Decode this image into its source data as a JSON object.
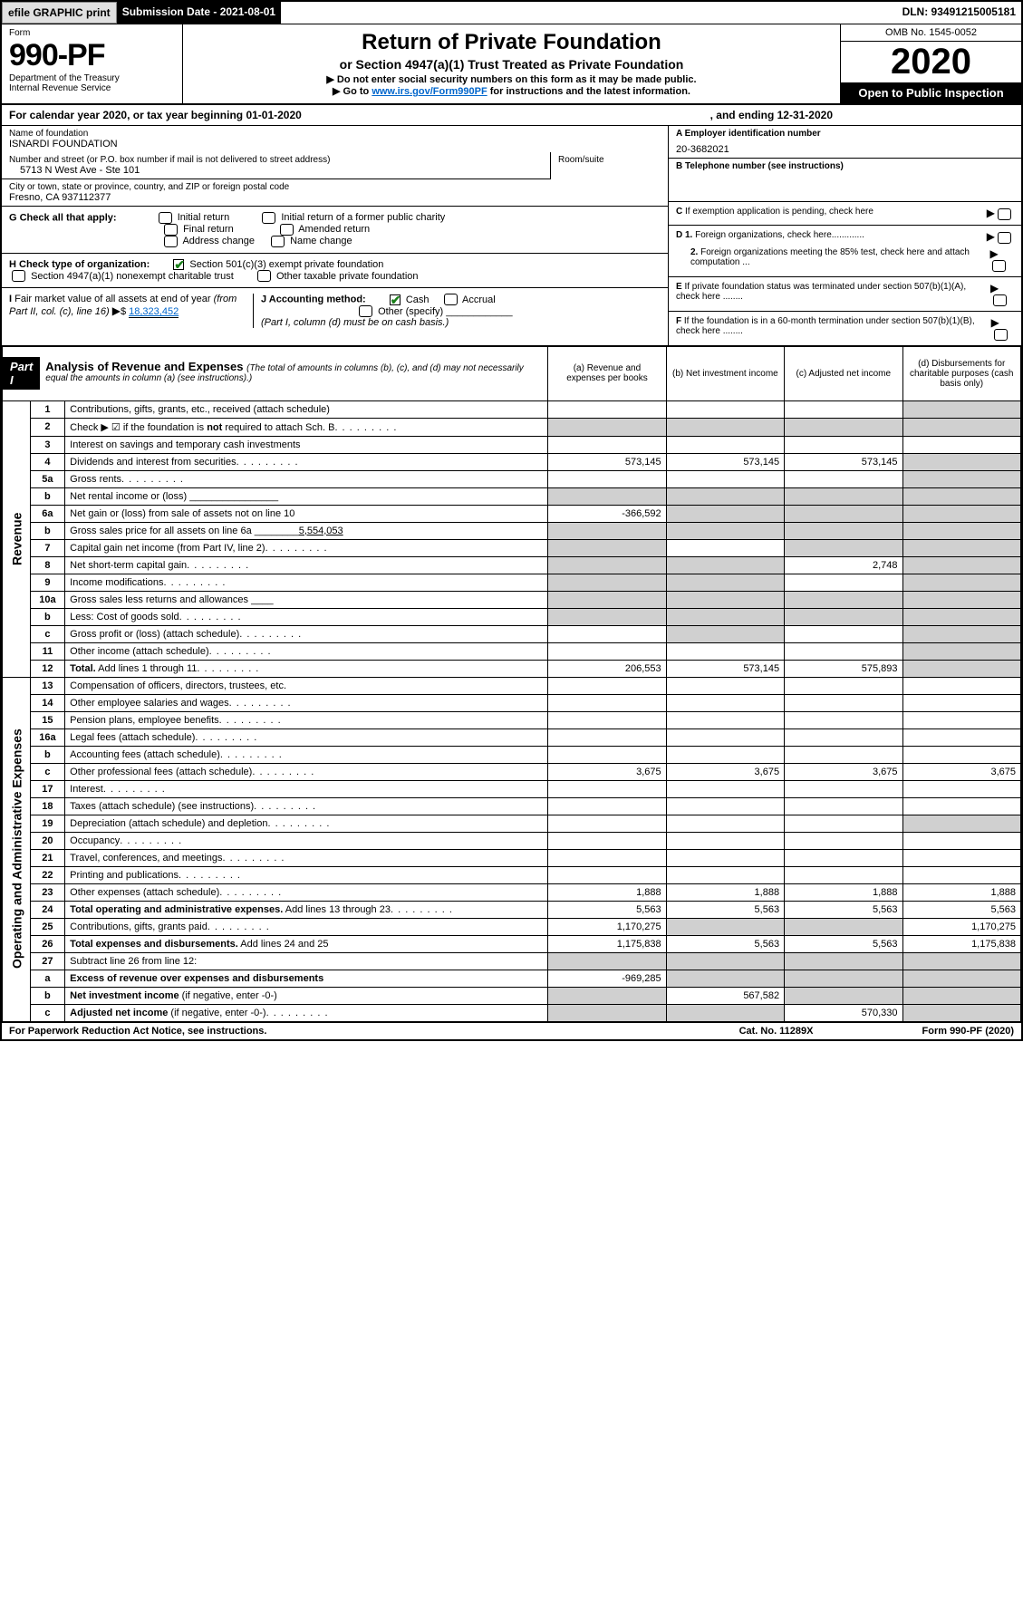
{
  "topbar": {
    "efile": "efile GRAPHIC print",
    "submission": "Submission Date - 2021-08-01",
    "dln": "DLN: 93491215005181"
  },
  "header": {
    "form_label": "Form",
    "form_number": "990-PF",
    "dept": "Department of the Treasury\nInternal Revenue Service",
    "title": "Return of Private Foundation",
    "subtitle": "or Section 4947(a)(1) Trust Treated as Private Foundation",
    "instr1_prefix": "▶ Do not enter social security numbers on this form as it may be made public.",
    "instr2_prefix": "▶ Go to ",
    "instr2_link": "www.irs.gov/Form990PF",
    "instr2_suffix": " for instructions and the latest information.",
    "omb": "OMB No. 1545-0052",
    "year": "2020",
    "open_public": "Open to Public Inspection"
  },
  "calendar": {
    "text_a": "For calendar year 2020, or tax year beginning 01-01-2020",
    "text_b": ", and ending 12-31-2020"
  },
  "info": {
    "name_label": "Name of foundation",
    "name": "ISNARDI FOUNDATION",
    "addr_label": "Number and street (or P.O. box number if mail is not delivered to street address)",
    "addr": "5713 N West Ave - Ste 101",
    "room_label": "Room/suite",
    "city_label": "City or town, state or province, country, and ZIP or foreign postal code",
    "city": "Fresno, CA  937112377",
    "ein_label": "A Employer identification number",
    "ein": "20-3682021",
    "tel_label": "B Telephone number (see instructions)",
    "c_label": "C If exemption application is pending, check here",
    "d1_label": "D 1. Foreign organizations, check here.............",
    "d2_label": "2. Foreign organizations meeting the 85% test, check here and attach computation ...",
    "e_label": "E  If private foundation status was terminated under section 507(b)(1)(A), check here ........",
    "f_label": "F  If the foundation is in a 60-month termination under section 507(b)(1)(B), check here ........"
  },
  "g": {
    "label": "G Check all that apply:",
    "opts": [
      "Initial return",
      "Initial return of a former public charity",
      "Final return",
      "Amended return",
      "Address change",
      "Name change"
    ]
  },
  "h": {
    "label": "H Check type of organization:",
    "opt1": "Section 501(c)(3) exempt private foundation",
    "opt2": "Section 4947(a)(1) nonexempt charitable trust",
    "opt3": "Other taxable private foundation"
  },
  "i": {
    "label": "I Fair market value of all assets at end of year (from Part II, col. (c), line 16) ▶$ ",
    "value": "18,323,452"
  },
  "j": {
    "label": "J Accounting method:",
    "cash": "Cash",
    "accrual": "Accrual",
    "other": "Other (specify)",
    "note": "(Part I, column (d) must be on cash basis.)"
  },
  "part1": {
    "label": "Part I",
    "title": "Analysis of Revenue and Expenses ",
    "sub": "(The total of amounts in columns (b), (c), and (d) may not necessarily equal the amounts in column (a) (see instructions).)",
    "cols": {
      "a": "(a)   Revenue and expenses per books",
      "b": "(b)  Net investment income",
      "c": "(c)  Adjusted net income",
      "d": "(d)  Disbursements for charitable purposes (cash basis only)"
    }
  },
  "rows": [
    {
      "n": "1",
      "d": "Contributions, gifts, grants, etc., received (attach schedule)",
      "sh": [
        "",
        "",
        "",
        "d"
      ]
    },
    {
      "n": "2",
      "d": "Check ▶ ☑ if the foundation is <b>not</b> required to attach Sch. B",
      "dots": true,
      "sh": [
        "a",
        "b",
        "c",
        "d"
      ]
    },
    {
      "n": "3",
      "d": "Interest on savings and temporary cash investments",
      "sh": [
        "",
        "",
        "",
        ""
      ]
    },
    {
      "n": "4",
      "d": "Dividends and interest from securities",
      "dots": true,
      "a": "573,145",
      "b": "573,145",
      "c": "573,145",
      "sh": [
        "",
        "",
        "",
        "d"
      ]
    },
    {
      "n": "5a",
      "d": "Gross rents",
      "dots": true,
      "sh": [
        "",
        "",
        "",
        "d"
      ]
    },
    {
      "n": "b",
      "d": "Net rental income or (loss) ________________",
      "sh": [
        "a",
        "b",
        "c",
        "d"
      ]
    },
    {
      "n": "6a",
      "d": "Net gain or (loss) from sale of assets not on line 10",
      "a": "-366,592",
      "sh": [
        "",
        "b",
        "c",
        "d"
      ]
    },
    {
      "n": "b",
      "d": "Gross sales price for all assets on line 6a ________<u>5,554,053</u>",
      "sh": [
        "a",
        "b",
        "c",
        "d"
      ]
    },
    {
      "n": "7",
      "d": "Capital gain net income (from Part IV, line 2)",
      "dots": true,
      "sh": [
        "a",
        "",
        "c",
        "d"
      ]
    },
    {
      "n": "8",
      "d": "Net short-term capital gain",
      "dots": true,
      "c": "2,748",
      "sh": [
        "a",
        "b",
        "",
        "d"
      ]
    },
    {
      "n": "9",
      "d": "Income modifications",
      "dots": true,
      "sh": [
        "a",
        "b",
        "",
        "d"
      ]
    },
    {
      "n": "10a",
      "d": "Gross sales less returns and allowances  ____",
      "sh": [
        "a",
        "b",
        "c",
        "d"
      ]
    },
    {
      "n": "b",
      "d": "Less: Cost of goods sold",
      "dots": true,
      "sh": [
        "a",
        "b",
        "c",
        "d"
      ]
    },
    {
      "n": "c",
      "d": "Gross profit or (loss) (attach schedule)",
      "dots": true,
      "sh": [
        "",
        "b",
        "",
        "d"
      ]
    },
    {
      "n": "11",
      "d": "Other income (attach schedule)",
      "dots": true,
      "sh": [
        "",
        "",
        "",
        "d"
      ]
    },
    {
      "n": "12",
      "d": "<b>Total.</b> Add lines 1 through 11",
      "dots": true,
      "a": "206,553",
      "b": "573,145",
      "c": "575,893",
      "sh": [
        "",
        "",
        "",
        "d"
      ]
    }
  ],
  "exp_rows": [
    {
      "n": "13",
      "d": "Compensation of officers, directors, trustees, etc."
    },
    {
      "n": "14",
      "d": "Other employee salaries and wages",
      "dots": true
    },
    {
      "n": "15",
      "d": "Pension plans, employee benefits",
      "dots": true
    },
    {
      "n": "16a",
      "d": "Legal fees (attach schedule)",
      "dots": true
    },
    {
      "n": "b",
      "d": "Accounting fees (attach schedule)",
      "dots": true
    },
    {
      "n": "c",
      "d": "Other professional fees (attach schedule)",
      "dots": true,
      "a": "3,675",
      "b": "3,675",
      "c": "3,675",
      "D": "3,675"
    },
    {
      "n": "17",
      "d": "Interest",
      "dots": true
    },
    {
      "n": "18",
      "d": "Taxes (attach schedule) (see instructions)",
      "dots": true
    },
    {
      "n": "19",
      "d": "Depreciation (attach schedule) and depletion",
      "dots": true,
      "sh": [
        "",
        "",
        "",
        "d"
      ]
    },
    {
      "n": "20",
      "d": "Occupancy",
      "dots": true
    },
    {
      "n": "21",
      "d": "Travel, conferences, and meetings",
      "dots": true
    },
    {
      "n": "22",
      "d": "Printing and publications",
      "dots": true
    },
    {
      "n": "23",
      "d": "Other expenses (attach schedule)",
      "dots": true,
      "a": "1,888",
      "b": "1,888",
      "c": "1,888",
      "D": "1,888"
    },
    {
      "n": "24",
      "d": "<b>Total operating and administrative expenses.</b> Add lines 13 through 23",
      "dots": true,
      "a": "5,563",
      "b": "5,563",
      "c": "5,563",
      "D": "5,563"
    },
    {
      "n": "25",
      "d": "Contributions, gifts, grants paid",
      "dots": true,
      "a": "1,170,275",
      "D": "1,170,275",
      "sh": [
        "",
        "b",
        "c",
        ""
      ]
    },
    {
      "n": "26",
      "d": "<b>Total expenses and disbursements.</b> Add lines 24 and 25",
      "a": "1,175,838",
      "b": "5,563",
      "c": "5,563",
      "D": "1,175,838"
    },
    {
      "n": "27",
      "d": "Subtract line 26 from line 12:",
      "sh": [
        "a",
        "b",
        "c",
        "d"
      ]
    },
    {
      "n": "a",
      "d": "<b>Excess of revenue over expenses and disbursements</b>",
      "a": "-969,285",
      "sh": [
        "",
        "b",
        "c",
        "d"
      ]
    },
    {
      "n": "b",
      "d": "<b>Net investment income</b> (if negative, enter -0-)",
      "b": "567,582",
      "sh": [
        "a",
        "",
        "c",
        "d"
      ]
    },
    {
      "n": "c",
      "d": "<b>Adjusted net income</b> (if negative, enter -0-)",
      "dots": true,
      "c": "570,330",
      "sh": [
        "a",
        "b",
        "",
        "d"
      ]
    }
  ],
  "section_labels": {
    "revenue": "Revenue",
    "expenses": "Operating and Administrative Expenses"
  },
  "footer": {
    "left": "For Paperwork Reduction Act Notice, see instructions.",
    "mid": "Cat. No. 11289X",
    "right": "Form 990-PF (2020)"
  }
}
